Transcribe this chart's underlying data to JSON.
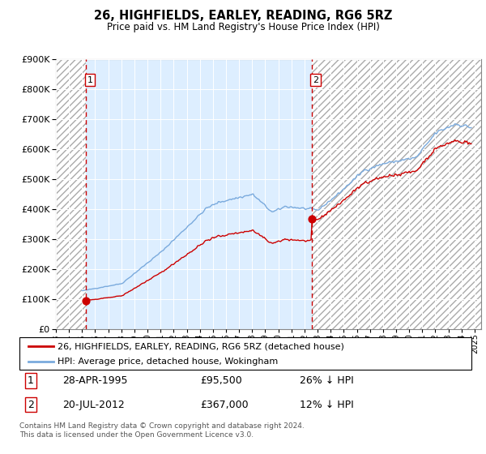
{
  "title": "26, HIGHFIELDS, EARLEY, READING, RG6 5RZ",
  "subtitle": "Price paid vs. HM Land Registry's House Price Index (HPI)",
  "sale1_year": 1995.29,
  "sale1_price": 95500,
  "sale1_label": "1",
  "sale2_year": 2012.54,
  "sale2_price": 367000,
  "sale2_label": "2",
  "legend_line1": "26, HIGHFIELDS, EARLEY, READING, RG6 5RZ (detached house)",
  "legend_line2": "HPI: Average price, detached house, Wokingham",
  "table_row1": [
    "1",
    "28-APR-1995",
    "£95,500",
    "26% ↓ HPI"
  ],
  "table_row2": [
    "2",
    "20-JUL-2012",
    "£367,000",
    "12% ↓ HPI"
  ],
  "footnote1": "Contains HM Land Registry data © Crown copyright and database right 2024.",
  "footnote2": "This data is licensed under the Open Government Licence v3.0.",
  "hpi_color": "#7aaadd",
  "price_color": "#cc0000",
  "vline_color": "#cc0000",
  "bg_color": "#ddeeff",
  "hatch_bg": "#f0f0f0",
  "ylim": [
    0,
    900000
  ],
  "yticks": [
    0,
    100000,
    200000,
    300000,
    400000,
    500000,
    600000,
    700000,
    800000,
    900000
  ],
  "xlim_start": 1993.0,
  "xlim_end": 2025.5
}
